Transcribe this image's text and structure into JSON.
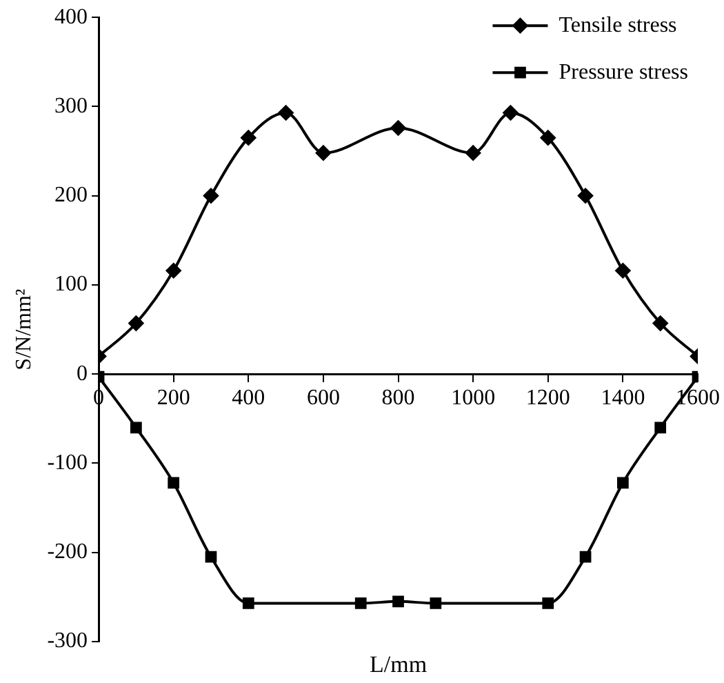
{
  "chart_data": {
    "type": "line",
    "xlabel": "L/mm",
    "ylabel": "S/N/mm²",
    "xlim": [
      0,
      1600
    ],
    "xticks": [
      0,
      200,
      400,
      600,
      800,
      1000,
      1200,
      1400,
      1600
    ],
    "ylim": [
      -300,
      400
    ],
    "yticks": [
      -300,
      -200,
      -100,
      0,
      100,
      200,
      300,
      400
    ],
    "grid": false,
    "legend": "top right",
    "line_style": "solid",
    "series": [
      {
        "name": "Tensile stress",
        "color": "#000000",
        "marker": "diamond",
        "x": [
          0,
          100,
          200,
          300,
          400,
          500,
          600,
          800,
          1000,
          1100,
          1200,
          1300,
          1400,
          1500,
          1600
        ],
        "values": [
          20,
          57,
          116,
          200,
          265,
          293,
          248,
          276,
          248,
          293,
          265,
          200,
          116,
          57,
          20
        ]
      },
      {
        "name": "Pressure stress",
        "color": "#000000",
        "marker": "square",
        "x": [
          0,
          100,
          200,
          300,
          400,
          700,
          800,
          900,
          1200,
          1300,
          1400,
          1500,
          1600
        ],
        "values": [
          -3,
          -60,
          -122,
          -205,
          -257,
          -257,
          -255,
          -257,
          -257,
          -205,
          -122,
          -60,
          -3
        ]
      }
    ]
  }
}
